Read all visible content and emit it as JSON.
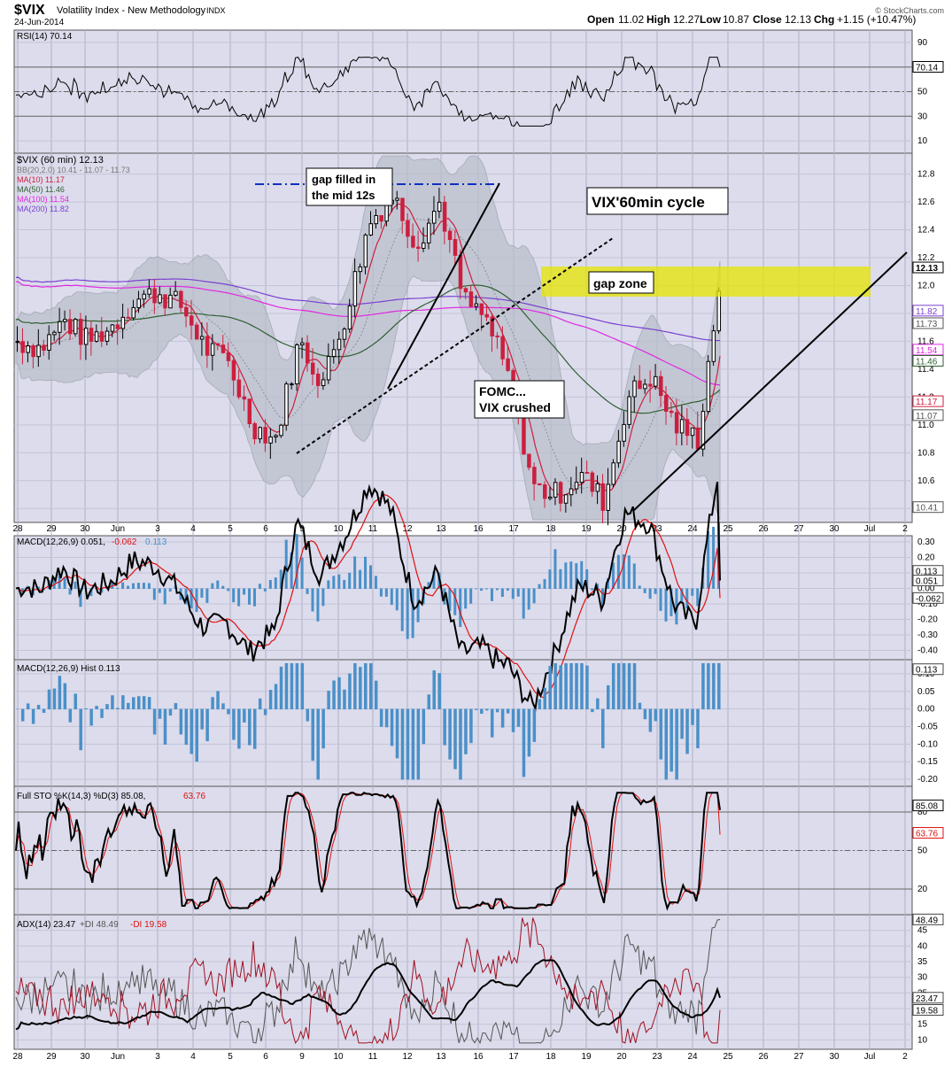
{
  "header": {
    "symbol": "$VIX",
    "name": "Volatility Index - New Methodology",
    "exchange": "INDX",
    "date": "24-Jun-2014",
    "open_label": "Open",
    "open": "11.02",
    "high_label": "High",
    "high": "12.27",
    "low_label": "Low",
    "low": "10.87",
    "close_label": "Close",
    "close": "12.13",
    "chg_label": "Chg",
    "chg": "+1.15 (+10.47%)",
    "watermark": "© StockCharts.com"
  },
  "colors": {
    "panel_bg": "#dcdcec",
    "up_candle": "#000000",
    "down_candle": "#cc1f3e",
    "bb_fill": "#b9bfcb",
    "ma10": "#cc1f3e",
    "ma50": "#2f5f2f",
    "ma100": "#e028e0",
    "ma200": "#7a40d0",
    "macd_hist": "#4a90c8",
    "signal": "#e01010",
    "gap_zone": "#e6e600"
  },
  "x_axis": {
    "labels": [
      "28",
      "29",
      "30",
      "Jun",
      "3",
      "4",
      "5",
      "6",
      "9",
      "10",
      "11",
      "12",
      "13",
      "16",
      "17",
      "18",
      "19",
      "20",
      "23",
      "24",
      "25",
      "26",
      "27",
      "30",
      "Jul",
      "2"
    ]
  },
  "panels": {
    "rsi": {
      "label": "RSI(14) 70.14",
      "ticks": [
        "90",
        "70",
        "50",
        "30",
        "10"
      ],
      "current": "70.14"
    },
    "price": {
      "legend": [
        {
          "text": "$VIX (60 min) 12.13",
          "color": "#000000"
        },
        {
          "text": "BB(20,2.0) 10.41 - 11.07 - 11.73",
          "color": "#777777"
        },
        {
          "text": "MA(10) 11.17",
          "color": "#cc1f3e"
        },
        {
          "text": "MA(50) 11.46",
          "color": "#2f5f2f"
        },
        {
          "text": "MA(100) 11.54",
          "color": "#e028e0"
        },
        {
          "text": "MA(200) 11.82",
          "color": "#7a40d0"
        }
      ],
      "ticks": [
        "12.8",
        "12.6",
        "12.4",
        "12.2",
        "12.0",
        "11.8",
        "11.6",
        "11.4",
        "11.2",
        "11.0",
        "10.8",
        "10.6",
        "10.4"
      ],
      "tags": [
        {
          "text": "12.13",
          "value": 12.13,
          "bg": "#ffffff",
          "fg": "#000000",
          "bold": true
        },
        {
          "text": "11.82",
          "value": 11.82,
          "bg": "#ffffff",
          "fg": "#7a40d0"
        },
        {
          "text": "11.73",
          "value": 11.73,
          "bg": "#ffffff",
          "fg": "#555555"
        },
        {
          "text": "11.54",
          "value": 11.54,
          "bg": "#ffffff",
          "fg": "#e028e0"
        },
        {
          "text": "11.46",
          "value": 11.46,
          "bg": "#ffffff",
          "fg": "#2f5f2f"
        },
        {
          "text": "11.17",
          "value": 11.17,
          "bg": "#ffffff",
          "fg": "#cc1f3e"
        },
        {
          "text": "11.07",
          "value": 11.07,
          "bg": "#ffffff",
          "fg": "#555555"
        },
        {
          "text": "10.41",
          "value": 10.41,
          "bg": "#ffffff",
          "fg": "#555555"
        }
      ],
      "annotations": {
        "gap_filled_line1": "gap filled in",
        "gap_filled_line2": "the mid 12s",
        "cycle": "VIX'60min cycle",
        "gap_zone": "gap zone",
        "fomc_line1": "FOMC...",
        "fomc_line2": "VIX crushed"
      }
    },
    "macd": {
      "label_main": "MACD(12,26,9) 0.051,",
      "label_signal": "-0.062",
      "label_hist": "0.113",
      "ticks": [
        "0.30",
        "0.20",
        "0.10",
        "0.00",
        "-0.10",
        "-0.20",
        "-0.30",
        "-0.40"
      ],
      "tags": [
        {
          "text": "0.113",
          "value": 0.113
        },
        {
          "text": "0.051",
          "value": 0.051
        },
        {
          "text": "-0.062",
          "value": -0.062
        }
      ]
    },
    "hist": {
      "label": "MACD(12,26,9) Hist 0.113",
      "ticks": [
        "0.10",
        "0.05",
        "0.00",
        "-0.05",
        "-0.10",
        "-0.15",
        "-0.20"
      ],
      "tag": "0.113"
    },
    "sto": {
      "label_main": "Full STO %K(14,3) %D(3) 85.08,",
      "label_d": "63.76",
      "ticks": [
        "80",
        "50",
        "20"
      ],
      "tag_k": "85.08",
      "tag_d": "63.76"
    },
    "adx": {
      "label_main": "ADX(14) 23.47",
      "label_pdi": "+DI 48.49",
      "label_mdi": "-DI 19.58",
      "ticks": [
        "45",
        "40",
        "35",
        "30",
        "25",
        "20",
        "15",
        "10"
      ],
      "tags": [
        {
          "text": "48.49",
          "value": 48.49
        },
        {
          "text": "23.47",
          "value": 23.47
        },
        {
          "text": "19.58",
          "value": 19.58
        }
      ]
    }
  },
  "chart_data": {
    "type": "candlestick",
    "title": "$VIX (60 min)",
    "ylim": [
      10.3,
      12.95
    ],
    "dates": [
      "28",
      "29",
      "30",
      "Jun",
      "3",
      "4",
      "5",
      "6",
      "9",
      "10",
      "11",
      "12",
      "13",
      "16",
      "17",
      "18",
      "19",
      "20",
      "23",
      "24"
    ],
    "close_series": [
      11.6,
      11.55,
      11.75,
      11.6,
      11.7,
      11.9,
      11.95,
      11.85,
      11.55,
      11.45,
      11.0,
      10.9,
      11.6,
      11.3,
      11.8,
      12.45,
      12.65,
      12.3,
      12.6,
      11.9,
      11.75,
      11.3,
      10.55,
      10.5,
      10.65,
      10.45,
      11.2,
      11.35,
      11.0,
      10.9,
      12.13
    ],
    "ma10": 11.17,
    "ma50": 11.46,
    "ma100": 11.54,
    "ma200": 11.82,
    "bb": {
      "lower": 10.41,
      "middle": 11.07,
      "upper": 11.73
    },
    "gap_zone_range": [
      11.85,
      12.08
    ],
    "last": 12.13
  }
}
